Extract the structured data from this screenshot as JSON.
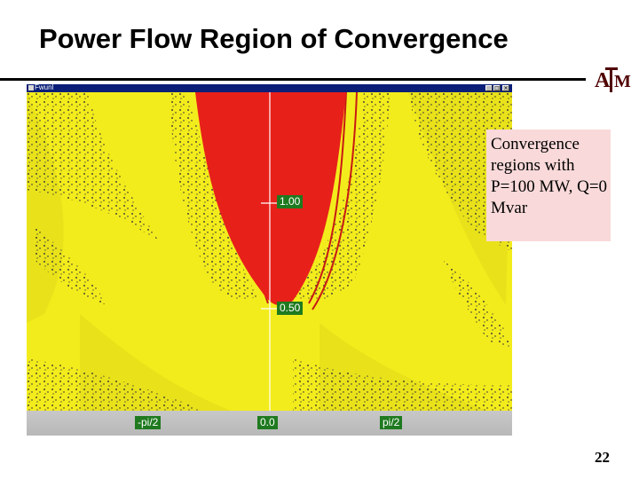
{
  "slide": {
    "title": "Power Flow Region of Convergence",
    "page_number": "22",
    "logo_text": "ATM",
    "logo_color": "#500000"
  },
  "window": {
    "title": "Fwunl",
    "title_bar_color": "#0b1f78",
    "controls": [
      "_",
      "□",
      "×"
    ]
  },
  "plot": {
    "y_labels": [
      "1.00",
      "0.50"
    ],
    "x_labels": [
      "-pi/2",
      "0.0",
      "pi/2"
    ],
    "colors": {
      "converged_region": "#e8201a",
      "background_region": "#f3ec1c",
      "boundary": "#12123a",
      "axis_line": "#ffffff",
      "label_bg": "#1f7a1f"
    }
  },
  "annotation": {
    "text": "Convergence regions with P=100 MW, Q=0 Mvar",
    "bg_color": "#f9d9d9"
  }
}
